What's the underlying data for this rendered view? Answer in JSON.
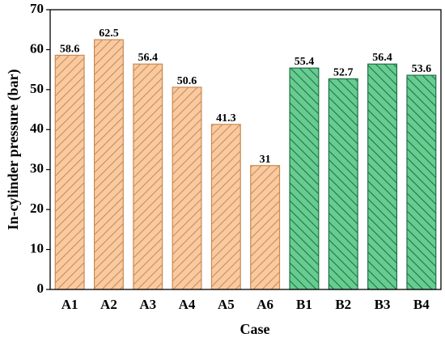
{
  "chart_data": {
    "type": "bar",
    "x_label": "Case",
    "y_label": "In-cylinder pressure (bar)",
    "categories": [
      "A1",
      "A2",
      "A3",
      "A4",
      "A5",
      "A6",
      "B1",
      "B2",
      "B3",
      "B4"
    ],
    "values": [
      58.6,
      62.5,
      56.4,
      50.6,
      41.3,
      31,
      55.4,
      52.7,
      56.4,
      53.6
    ],
    "colors": [
      "#f9c9a0",
      "#f9c9a0",
      "#f9c9a0",
      "#f9c9a0",
      "#f9c9a0",
      "#f9c9a0",
      "#66cc8f",
      "#66cc8f",
      "#66cc8f",
      "#66cc8f"
    ],
    "edge_colors": [
      "#c98a52",
      "#c98a52",
      "#c98a52",
      "#c98a52",
      "#c98a52",
      "#c98a52",
      "#1f6f45",
      "#1f6f45",
      "#1f6f45",
      "#1f6f45"
    ],
    "hatches": [
      "/",
      "/",
      "/",
      "/",
      "/",
      "/",
      "\\",
      "\\",
      "\\",
      "\\"
    ],
    "ylim": [
      0,
      70
    ],
    "yticks": [
      0,
      10,
      20,
      30,
      40,
      50,
      60,
      70
    ]
  }
}
